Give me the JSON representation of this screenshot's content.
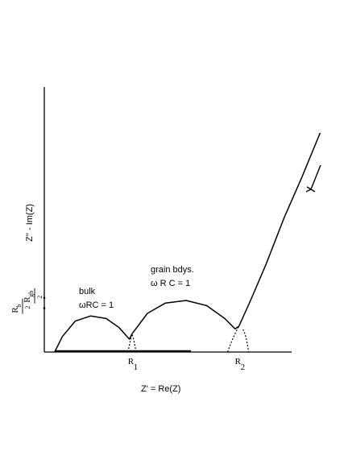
{
  "chart_data": {
    "type": "line",
    "title": "",
    "xlabel": "Z' = Re(Z)",
    "ylabel": "Z'' - Im(Z)",
    "xlim": [
      0,
      1
    ],
    "ylim": [
      0,
      1
    ],
    "x_tick_labels": [
      {
        "base": "R",
        "sub": "1",
        "x": 0.34
      },
      {
        "base": "R",
        "sub": "2",
        "x": 0.755
      }
    ],
    "y_tick_labels": [
      {
        "base": "R",
        "sub": "b",
        "den": "2",
        "y": 0.17
      },
      {
        "base": "R",
        "sub": "gb",
        "den": "2",
        "y": 0.21
      }
    ],
    "annotations": [
      {
        "id": "bulk",
        "lines": [
          "bulk",
          "ωRC = 1"
        ]
      },
      {
        "id": "grain",
        "lines": [
          "grain bdys.",
          "ω  R C = 1"
        ]
      }
    ],
    "series": [
      {
        "id": "bulk-arc",
        "x": [
          0.04,
          0.07,
          0.12,
          0.18,
          0.24,
          0.29,
          0.33,
          0.34
        ],
        "y": [
          0.0,
          0.06,
          0.12,
          0.14,
          0.13,
          0.095,
          0.05,
          0.07
        ]
      },
      {
        "id": "grain-arc",
        "x": [
          0.34,
          0.4,
          0.47,
          0.55,
          0.63,
          0.7,
          0.74,
          0.755
        ],
        "y": [
          0.07,
          0.15,
          0.19,
          0.2,
          0.18,
          0.13,
          0.09,
          0.1
        ]
      },
      {
        "id": "spike",
        "x": [
          0.755,
          0.8,
          0.86,
          0.93,
          1.0,
          1.07
        ],
        "y": [
          0.1,
          0.2,
          0.34,
          0.52,
          0.68,
          0.85
        ]
      }
    ]
  }
}
